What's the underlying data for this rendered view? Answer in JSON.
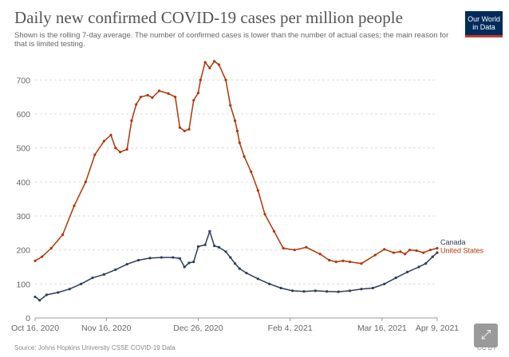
{
  "header": {
    "title": "Daily new confirmed COVID-19 cases per million people",
    "subtitle": "Shown is the rolling 7-day average. The number of confirmed cases is lower than the number of actual cases; the main reason for that is limited testing."
  },
  "logo": {
    "line1": "Our World",
    "line2": "in Data"
  },
  "footer": {
    "source": "Source: Johns Hopkins University CSSE COVID-19 Data",
    "license": "CC BY"
  },
  "colors": {
    "united_states": "#b13507",
    "canada": "#2c3e58",
    "grid": "#dddddd"
  },
  "icons": {
    "expand": "expand-arrows-icon"
  },
  "chart_data": {
    "type": "line",
    "title": "Daily new confirmed COVID-19 cases per million people",
    "xlabel": "",
    "ylabel": "",
    "x_range": [
      "2020-10-16",
      "2021-04-09"
    ],
    "x_ticks": [
      "Oct 16, 2020",
      "Nov 16, 2020",
      "Dec 26, 2020",
      "Feb 4, 2021",
      "Mar 16, 2021",
      "Apr 9, 2021"
    ],
    "x_tick_days": [
      0,
      31,
      71,
      111,
      151,
      175
    ],
    "ylim": [
      0,
      750
    ],
    "y_ticks": [
      0,
      100,
      200,
      300,
      400,
      500,
      600,
      700
    ],
    "grid": true,
    "series": [
      {
        "name": "United States",
        "day": [
          0,
          3,
          7,
          12,
          17,
          22,
          26,
          30,
          33,
          35,
          37,
          40,
          42,
          44,
          46,
          49,
          51,
          54,
          58,
          61,
          63,
          65,
          67,
          69,
          71,
          72,
          74,
          76,
          78,
          80,
          83,
          85,
          87,
          88,
          89,
          91,
          94,
          97,
          100,
          104,
          108,
          113,
          118,
          124,
          128,
          131,
          134,
          137,
          142,
          148,
          152,
          156,
          159,
          161,
          163,
          166,
          169,
          172,
          175
        ],
        "values": [
          168,
          180,
          205,
          245,
          330,
          400,
          480,
          520,
          538,
          500,
          488,
          496,
          580,
          628,
          650,
          655,
          648,
          668,
          660,
          650,
          560,
          550,
          555,
          640,
          662,
          700,
          752,
          735,
          755,
          745,
          700,
          625,
          580,
          550,
          515,
          475,
          430,
          375,
          305,
          255,
          205,
          200,
          208,
          188,
          170,
          165,
          168,
          165,
          160,
          185,
          202,
          192,
          195,
          188,
          200,
          198,
          192,
          200,
          205
        ]
      },
      {
        "name": "Canada",
        "day": [
          0,
          2,
          5,
          10,
          15,
          20,
          25,
          30,
          35,
          40,
          45,
          50,
          55,
          60,
          63,
          65,
          67,
          69,
          71,
          74,
          76,
          78,
          80,
          83,
          85,
          87,
          89,
          92,
          97,
          102,
          107,
          112,
          117,
          122,
          127,
          132,
          137,
          142,
          147,
          152,
          157,
          162,
          167,
          170,
          173,
          175
        ],
        "values": [
          62,
          52,
          68,
          75,
          85,
          100,
          118,
          128,
          142,
          158,
          170,
          176,
          178,
          178,
          175,
          150,
          162,
          165,
          210,
          215,
          255,
          212,
          208,
          195,
          178,
          160,
          145,
          132,
          115,
          100,
          88,
          80,
          78,
          80,
          78,
          77,
          80,
          85,
          88,
          100,
          118,
          135,
          150,
          160,
          180,
          192
        ]
      }
    ]
  }
}
